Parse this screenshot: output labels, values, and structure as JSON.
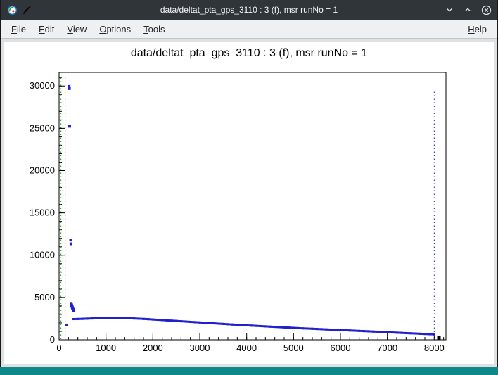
{
  "window": {
    "title": "data/deltat_pta_gps_3110 : 3 (f), msr runNo = 1",
    "controls": [
      "minimize",
      "maximize",
      "close"
    ]
  },
  "menubar": {
    "items": [
      {
        "label": "File",
        "mnemonic": "F"
      },
      {
        "label": "Edit",
        "mnemonic": "E"
      },
      {
        "label": "View",
        "mnemonic": "V"
      },
      {
        "label": "Options",
        "mnemonic": "O"
      },
      {
        "label": "Tools",
        "mnemonic": "T"
      }
    ],
    "help": {
      "label": "Help",
      "mnemonic": "H"
    }
  },
  "colors": {
    "titlebar_bg": "#30353a",
    "titlebar_text": "#f4f5f6",
    "menubar_bg": "#eff0f1",
    "frame_bg": "#dfe0e1",
    "canvas_bg": "#ffffff",
    "desktop_strip": "#0e8888"
  },
  "chart_data": {
    "type": "scatter",
    "title": "data/deltat_pta_gps_3110 : 3 (f), msr runNo = 1",
    "xlabel": "",
    "ylabel": "",
    "xlim": [
      0,
      8250
    ],
    "ylim": [
      0,
      31600
    ],
    "grid": false,
    "legend": "none",
    "x_major_ticks": [
      0,
      1000,
      2000,
      3000,
      4000,
      5000,
      6000,
      7000,
      8000
    ],
    "x_minor_step": 200,
    "y_major_ticks": [
      0,
      5000,
      10000,
      15000,
      20000,
      25000,
      30000
    ],
    "y_minor_step": 1000,
    "marker_color": "#2121cc",
    "peak_points": [
      [
        150,
        1750
      ],
      [
        212,
        29950
      ],
      [
        219,
        29700
      ],
      [
        225,
        25250
      ],
      [
        248,
        11800
      ],
      [
        254,
        11350
      ],
      [
        256,
        4300
      ],
      [
        263,
        4170
      ],
      [
        269,
        4060
      ],
      [
        275,
        3960
      ],
      [
        281,
        3860
      ],
      [
        287,
        3760
      ],
      [
        293,
        3660
      ],
      [
        300,
        3570
      ],
      [
        308,
        3490
      ],
      [
        316,
        3420
      ]
    ],
    "band_points": [
      [
        300,
        2450
      ],
      [
        400,
        2465
      ],
      [
        500,
        2480
      ],
      [
        600,
        2505
      ],
      [
        700,
        2530
      ],
      [
        800,
        2550
      ],
      [
        900,
        2570
      ],
      [
        1000,
        2590
      ],
      [
        1100,
        2600
      ],
      [
        1200,
        2595
      ],
      [
        1300,
        2585
      ],
      [
        1400,
        2570
      ],
      [
        1500,
        2550
      ],
      [
        1600,
        2525
      ],
      [
        1700,
        2500
      ],
      [
        1800,
        2470
      ],
      [
        1900,
        2440
      ],
      [
        2000,
        2405
      ],
      [
        2100,
        2370
      ],
      [
        2200,
        2335
      ],
      [
        2300,
        2300
      ],
      [
        2400,
        2265
      ],
      [
        2500,
        2230
      ],
      [
        2600,
        2195
      ],
      [
        2700,
        2160
      ],
      [
        2800,
        2125
      ],
      [
        2900,
        2090
      ],
      [
        3000,
        2055
      ],
      [
        3100,
        2020
      ],
      [
        3200,
        1985
      ],
      [
        3300,
        1950
      ],
      [
        3400,
        1915
      ],
      [
        3500,
        1880
      ],
      [
        3600,
        1845
      ],
      [
        3700,
        1810
      ],
      [
        3800,
        1775
      ],
      [
        3900,
        1740
      ],
      [
        4000,
        1710
      ],
      [
        4100,
        1680
      ],
      [
        4200,
        1650
      ],
      [
        4300,
        1620
      ],
      [
        4400,
        1590
      ],
      [
        4500,
        1560
      ],
      [
        4600,
        1530
      ],
      [
        4700,
        1500
      ],
      [
        4800,
        1470
      ],
      [
        4900,
        1440
      ],
      [
        5000,
        1410
      ],
      [
        5100,
        1380
      ],
      [
        5200,
        1355
      ],
      [
        5300,
        1330
      ],
      [
        5400,
        1305
      ],
      [
        5500,
        1280
      ],
      [
        5600,
        1255
      ],
      [
        5700,
        1230
      ],
      [
        5800,
        1205
      ],
      [
        5900,
        1180
      ],
      [
        6000,
        1155
      ],
      [
        6100,
        1130
      ],
      [
        6200,
        1105
      ],
      [
        6300,
        1080
      ],
      [
        6400,
        1055
      ],
      [
        6500,
        1030
      ],
      [
        6600,
        1005
      ],
      [
        6700,
        980
      ],
      [
        6800,
        955
      ],
      [
        6900,
        930
      ],
      [
        7000,
        900
      ],
      [
        7100,
        870
      ],
      [
        7200,
        845
      ],
      [
        7300,
        820
      ],
      [
        7400,
        795
      ],
      [
        7500,
        770
      ],
      [
        7600,
        745
      ],
      [
        7700,
        720
      ],
      [
        7800,
        695
      ],
      [
        7900,
        670
      ],
      [
        8000,
        650
      ]
    ],
    "vlines": [
      {
        "x": 40,
        "color": "#00a000",
        "style": "dotted",
        "top": 31000
      },
      {
        "x": 130,
        "color": "#dd2222",
        "style": "dotted",
        "top": 31000
      },
      {
        "x": 8000,
        "color": "#2121cc",
        "style": "dotted",
        "top": 29500
      }
    ],
    "end_marker": {
      "x": 8100,
      "y": 250,
      "color": "#000000"
    }
  }
}
